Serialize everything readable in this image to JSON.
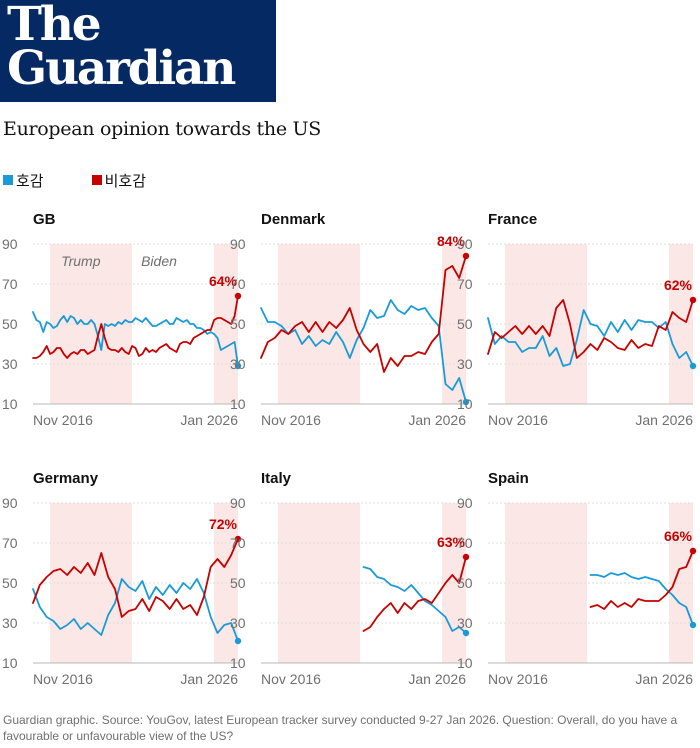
{
  "header": {
    "logo_text": "The\nGuardian",
    "title": "European opinion towards the US"
  },
  "colors": {
    "favourable": "#1a9bd7",
    "unfavourable": "#c70000",
    "brand": "#052962",
    "shade": "#fbe7e5"
  },
  "legend": [
    {
      "label": "호감",
      "color": "#1a9bd7"
    },
    {
      "label": "비호감",
      "color": "#c70000"
    }
  ],
  "chart_data": [
    {
      "type": "line",
      "title": "GB",
      "ylim": [
        10,
        90
      ],
      "yticks": [
        10,
        30,
        50,
        70,
        90
      ],
      "x_range": [
        "2016-01",
        "2026-01"
      ],
      "xticks": [
        "Nov 2016",
        "Jan 2026"
      ],
      "annotations": [
        "Trump",
        "Biden"
      ],
      "end_label": "64%",
      "shading": [
        [
          "2016-11",
          "2020-11"
        ],
        [
          "2024-11",
          "2026-01"
        ]
      ],
      "series": [
        {
          "name": "호감",
          "x": [
            "2016-01",
            "2016-03",
            "2016-05",
            "2016-07",
            "2016-09",
            "2016-11",
            "2017-01",
            "2017-03",
            "2017-05",
            "2017-07",
            "2017-09",
            "2017-11",
            "2018-01",
            "2018-03",
            "2018-05",
            "2018-07",
            "2018-09",
            "2018-11",
            "2019-01",
            "2019-03",
            "2019-05",
            "2019-07",
            "2019-09",
            "2019-11",
            "2020-01",
            "2020-03",
            "2020-05",
            "2020-07",
            "2020-09",
            "2020-11",
            "2021-01",
            "2021-03",
            "2021-05",
            "2021-07",
            "2021-09",
            "2021-11",
            "2022-01",
            "2022-03",
            "2022-05",
            "2022-07",
            "2022-09",
            "2022-11",
            "2023-01",
            "2023-03",
            "2023-05",
            "2023-07",
            "2023-09",
            "2023-11",
            "2024-01",
            "2024-03",
            "2024-05",
            "2024-07",
            "2024-09",
            "2024-11",
            "2025-01",
            "2025-03",
            "2025-05",
            "2025-07",
            "2025-09",
            "2025-11",
            "2026-01"
          ],
          "values": [
            56,
            52,
            51,
            46,
            51,
            50,
            48,
            49,
            52,
            54,
            51,
            54,
            53,
            50,
            52,
            50,
            50,
            52,
            50,
            44,
            37,
            50,
            49,
            50,
            49,
            51,
            50,
            52,
            51,
            51,
            53,
            52,
            51,
            53,
            51,
            49,
            49,
            50,
            51,
            52,
            50,
            50,
            53,
            52,
            51,
            52,
            50,
            50,
            48,
            48,
            47,
            45,
            46,
            45,
            43,
            37,
            38,
            39,
            40,
            41,
            29
          ]
        },
        {
          "name": "비호감",
          "x": [
            "2016-01",
            "2016-03",
            "2016-05",
            "2016-07",
            "2016-09",
            "2016-11",
            "2017-01",
            "2017-03",
            "2017-05",
            "2017-07",
            "2017-09",
            "2017-11",
            "2018-01",
            "2018-03",
            "2018-05",
            "2018-07",
            "2018-09",
            "2018-11",
            "2019-01",
            "2019-03",
            "2019-05",
            "2019-07",
            "2019-09",
            "2019-11",
            "2020-01",
            "2020-03",
            "2020-05",
            "2020-07",
            "2020-09",
            "2020-11",
            "2021-01",
            "2021-03",
            "2021-05",
            "2021-07",
            "2021-09",
            "2021-11",
            "2022-01",
            "2022-03",
            "2022-05",
            "2022-07",
            "2022-09",
            "2022-11",
            "2023-01",
            "2023-03",
            "2023-05",
            "2023-07",
            "2023-09",
            "2023-11",
            "2024-01",
            "2024-03",
            "2024-05",
            "2024-07",
            "2024-09",
            "2024-11",
            "2025-01",
            "2025-03",
            "2025-05",
            "2025-07",
            "2025-09",
            "2025-11",
            "2026-01"
          ],
          "values": [
            33,
            33,
            34,
            36,
            39,
            35,
            36,
            38,
            38,
            35,
            33,
            35,
            36,
            35,
            37,
            37,
            35,
            36,
            37,
            44,
            50,
            43,
            38,
            37,
            37,
            36,
            38,
            36,
            35,
            39,
            38,
            34,
            35,
            38,
            36,
            37,
            36,
            38,
            39,
            40,
            38,
            37,
            36,
            40,
            41,
            41,
            40,
            43,
            44,
            45,
            46,
            47,
            47,
            52,
            53,
            53,
            52,
            51,
            50,
            54,
            64
          ]
        }
      ]
    },
    {
      "type": "line",
      "title": "Denmark",
      "ylim": [
        10,
        90
      ],
      "yticks": [
        10,
        30,
        50,
        70,
        90
      ],
      "x_range": [
        "2016-01",
        "2026-01"
      ],
      "xticks": [
        "Nov 2016",
        "Jan 2026"
      ],
      "end_label": "84%",
      "shading": [
        [
          "2016-11",
          "2020-11"
        ],
        [
          "2024-11",
          "2026-01"
        ]
      ],
      "series": [
        {
          "name": "호감",
          "x": [
            "2016-01",
            "2016-05",
            "2016-09",
            "2017-01",
            "2017-05",
            "2017-09",
            "2018-01",
            "2018-05",
            "2018-09",
            "2019-01",
            "2019-05",
            "2019-09",
            "2020-01",
            "2020-05",
            "2020-09",
            "2021-01",
            "2021-05",
            "2021-09",
            "2022-01",
            "2022-05",
            "2022-09",
            "2023-01",
            "2023-05",
            "2023-09",
            "2024-01",
            "2024-05",
            "2024-09",
            "2025-01",
            "2025-05",
            "2025-09",
            "2026-01"
          ],
          "values": [
            58,
            51,
            51,
            49,
            45,
            47,
            40,
            44,
            39,
            42,
            40,
            46,
            41,
            33,
            42,
            48,
            57,
            53,
            54,
            62,
            57,
            55,
            59,
            57,
            58,
            53,
            49,
            20,
            17,
            23,
            11
          ]
        },
        {
          "name": "비호감",
          "x": [
            "2016-01",
            "2016-05",
            "2016-09",
            "2017-01",
            "2017-05",
            "2017-09",
            "2018-01",
            "2018-05",
            "2018-09",
            "2019-01",
            "2019-05",
            "2019-09",
            "2020-01",
            "2020-05",
            "2020-09",
            "2021-01",
            "2021-05",
            "2021-09",
            "2022-01",
            "2022-05",
            "2022-09",
            "2023-01",
            "2023-05",
            "2023-09",
            "2024-01",
            "2024-05",
            "2024-09",
            "2025-01",
            "2025-05",
            "2025-09",
            "2026-01"
          ],
          "values": [
            33,
            41,
            43,
            47,
            45,
            49,
            51,
            46,
            51,
            46,
            51,
            48,
            52,
            58,
            47,
            40,
            36,
            40,
            26,
            33,
            29,
            34,
            34,
            36,
            35,
            41,
            45,
            77,
            79,
            73,
            84
          ]
        }
      ]
    },
    {
      "type": "line",
      "title": "France",
      "ylim": [
        10,
        90
      ],
      "yticks": [
        10,
        30,
        50,
        70,
        90
      ],
      "x_range": [
        "2016-01",
        "2026-01"
      ],
      "xticks": [
        "Nov 2016",
        "Jan 2026"
      ],
      "end_label": "62%",
      "shading": [
        [
          "2016-11",
          "2020-11"
        ],
        [
          "2024-11",
          "2026-01"
        ]
      ],
      "series": [
        {
          "name": "호감",
          "x": [
            "2016-01",
            "2016-05",
            "2016-09",
            "2017-01",
            "2017-05",
            "2017-09",
            "2018-01",
            "2018-05",
            "2018-09",
            "2019-01",
            "2019-05",
            "2019-09",
            "2020-01",
            "2020-05",
            "2020-09",
            "2021-01",
            "2021-05",
            "2021-09",
            "2022-01",
            "2022-05",
            "2022-09",
            "2023-01",
            "2023-05",
            "2023-09",
            "2024-01",
            "2024-05",
            "2024-09",
            "2025-01",
            "2025-05",
            "2025-09",
            "2026-01"
          ],
          "values": [
            53,
            40,
            44,
            41,
            41,
            36,
            38,
            38,
            44,
            34,
            38,
            29,
            30,
            42,
            57,
            50,
            49,
            44,
            51,
            46,
            52,
            47,
            52,
            51,
            51,
            48,
            51,
            40,
            33,
            36,
            29
          ]
        },
        {
          "name": "비호감",
          "x": [
            "2016-01",
            "2016-05",
            "2016-09",
            "2017-01",
            "2017-05",
            "2017-09",
            "2018-01",
            "2018-05",
            "2018-09",
            "2019-01",
            "2019-05",
            "2019-09",
            "2020-01",
            "2020-05",
            "2020-09",
            "2021-01",
            "2021-05",
            "2021-09",
            "2022-01",
            "2022-05",
            "2022-09",
            "2023-01",
            "2023-05",
            "2023-09",
            "2024-01",
            "2024-05",
            "2024-09",
            "2025-01",
            "2025-05",
            "2025-09",
            "2026-01"
          ],
          "values": [
            35,
            46,
            43,
            46,
            49,
            45,
            49,
            45,
            49,
            44,
            58,
            62,
            50,
            33,
            36,
            40,
            37,
            43,
            41,
            38,
            37,
            42,
            38,
            40,
            39,
            49,
            47,
            56,
            53,
            51,
            62
          ]
        }
      ]
    },
    {
      "type": "line",
      "title": "Germany",
      "ylim": [
        10,
        90
      ],
      "yticks": [
        10,
        30,
        50,
        70,
        90
      ],
      "x_range": [
        "2016-01",
        "2026-01"
      ],
      "xticks": [
        "Nov 2016",
        "Jan 2026"
      ],
      "end_label": "72%",
      "shading": [
        [
          "2016-11",
          "2020-11"
        ],
        [
          "2024-11",
          "2026-01"
        ]
      ],
      "series": [
        {
          "name": "호감",
          "x": [
            "2016-01",
            "2016-05",
            "2016-09",
            "2017-01",
            "2017-05",
            "2017-09",
            "2018-01",
            "2018-05",
            "2018-09",
            "2019-01",
            "2019-05",
            "2019-09",
            "2020-01",
            "2020-05",
            "2020-09",
            "2021-01",
            "2021-05",
            "2021-09",
            "2022-01",
            "2022-05",
            "2022-09",
            "2023-01",
            "2023-05",
            "2023-09",
            "2024-01",
            "2024-05",
            "2024-09",
            "2025-01",
            "2025-05",
            "2025-09",
            "2026-01"
          ],
          "values": [
            47,
            38,
            33,
            31,
            27,
            29,
            32,
            27,
            30,
            27,
            24,
            34,
            40,
            52,
            48,
            46,
            51,
            42,
            48,
            44,
            49,
            45,
            50,
            47,
            52,
            45,
            33,
            25,
            29,
            30,
            21
          ]
        },
        {
          "name": "비호감",
          "x": [
            "2016-01",
            "2016-05",
            "2016-09",
            "2017-01",
            "2017-05",
            "2017-09",
            "2018-01",
            "2018-05",
            "2018-09",
            "2019-01",
            "2019-05",
            "2019-09",
            "2020-01",
            "2020-05",
            "2020-09",
            "2021-01",
            "2021-05",
            "2021-09",
            "2022-01",
            "2022-05",
            "2022-09",
            "2023-01",
            "2023-05",
            "2023-09",
            "2024-01",
            "2024-05",
            "2024-09",
            "2025-01",
            "2025-05",
            "2025-09",
            "2026-01"
          ],
          "values": [
            40,
            49,
            53,
            56,
            57,
            54,
            58,
            55,
            60,
            54,
            65,
            53,
            47,
            33,
            36,
            37,
            42,
            36,
            43,
            41,
            37,
            42,
            37,
            39,
            34,
            43,
            58,
            62,
            58,
            64,
            72
          ]
        }
      ]
    },
    {
      "type": "line",
      "title": "Italy",
      "ylim": [
        10,
        90
      ],
      "yticks": [
        10,
        30,
        50,
        70,
        90
      ],
      "x_range": [
        "2016-01",
        "2026-01"
      ],
      "xticks": [
        "Nov 2016",
        "Jan 2026"
      ],
      "end_label": "63%",
      "shading": [
        [
          "2016-11",
          "2020-11"
        ],
        [
          "2024-11",
          "2026-01"
        ]
      ],
      "series": [
        {
          "name": "호감",
          "x": [
            "2021-01",
            "2021-05",
            "2021-09",
            "2022-01",
            "2022-05",
            "2022-09",
            "2023-01",
            "2023-05",
            "2023-09",
            "2024-01",
            "2024-05",
            "2024-09",
            "2025-01",
            "2025-05",
            "2025-09",
            "2026-01"
          ],
          "values": [
            58,
            57,
            53,
            52,
            49,
            48,
            46,
            49,
            45,
            41,
            39,
            36,
            33,
            26,
            28,
            25
          ]
        },
        {
          "name": "비호감",
          "x": [
            "2021-01",
            "2021-05",
            "2021-09",
            "2022-01",
            "2022-05",
            "2022-09",
            "2023-01",
            "2023-05",
            "2023-09",
            "2024-01",
            "2024-05",
            "2024-09",
            "2025-01",
            "2025-05",
            "2025-09",
            "2026-01"
          ],
          "values": [
            26,
            28,
            33,
            37,
            40,
            35,
            40,
            37,
            41,
            42,
            40,
            45,
            50,
            54,
            50,
            63
          ]
        }
      ]
    },
    {
      "type": "line",
      "title": "Spain",
      "ylim": [
        10,
        90
      ],
      "yticks": [
        10,
        30,
        50,
        70,
        90
      ],
      "x_range": [
        "2016-01",
        "2026-01"
      ],
      "xticks": [
        "Nov 2016",
        "Jan 2026"
      ],
      "end_label": "66%",
      "shading": [
        [
          "2016-11",
          "2020-11"
        ],
        [
          "2024-11",
          "2026-01"
        ]
      ],
      "series": [
        {
          "name": "호감",
          "x": [
            "2021-01",
            "2021-05",
            "2021-09",
            "2022-01",
            "2022-05",
            "2022-09",
            "2023-01",
            "2023-05",
            "2023-09",
            "2024-01",
            "2024-05",
            "2024-09",
            "2025-01",
            "2025-05",
            "2025-09",
            "2026-01"
          ],
          "values": [
            54,
            54,
            53,
            55,
            54,
            55,
            53,
            52,
            53,
            52,
            51,
            47,
            44,
            40,
            38,
            29
          ]
        },
        {
          "name": "비호감",
          "x": [
            "2021-01",
            "2021-05",
            "2021-09",
            "2022-01",
            "2022-05",
            "2022-09",
            "2023-01",
            "2023-05",
            "2023-09",
            "2024-01",
            "2024-05",
            "2024-09",
            "2025-01",
            "2025-05",
            "2025-09",
            "2026-01"
          ],
          "values": [
            38,
            39,
            37,
            41,
            38,
            40,
            38,
            42,
            41,
            41,
            41,
            44,
            48,
            57,
            58,
            66
          ]
        }
      ]
    }
  ],
  "footer": "Guardian graphic. Source: YouGov, latest European tracker survey conducted 9-27 Jan 2026. Question: Overall, do you have a favourable or unfavourable view of the US?"
}
